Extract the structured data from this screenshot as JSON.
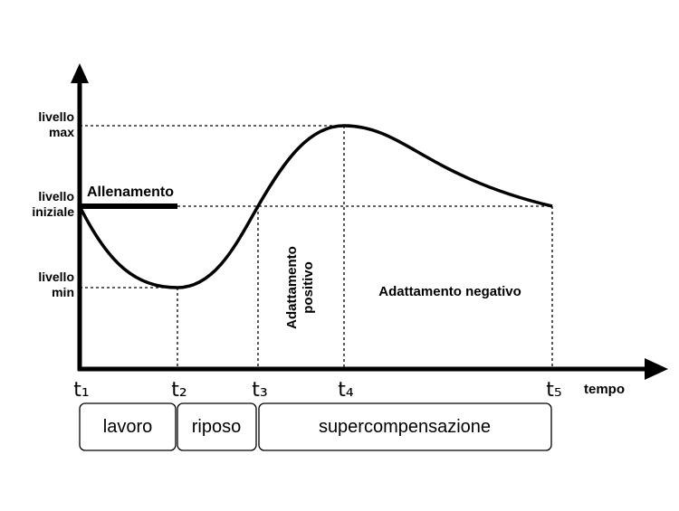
{
  "axis": {
    "y_label": [
      "livello",
      "max",
      "livello",
      "iniziale",
      "livello",
      "min"
    ],
    "x_label": "tempo",
    "x_ticks": [
      "t₁",
      "t₂",
      "t₃",
      "t₄",
      "t₅"
    ]
  },
  "annotations": {
    "training": "Allenamento",
    "positive": [
      "Adattamento",
      "positivo"
    ],
    "negative": "Adattamento negativo"
  },
  "phases": [
    "lavoro",
    "riposo",
    "supercompensazione"
  ]
}
